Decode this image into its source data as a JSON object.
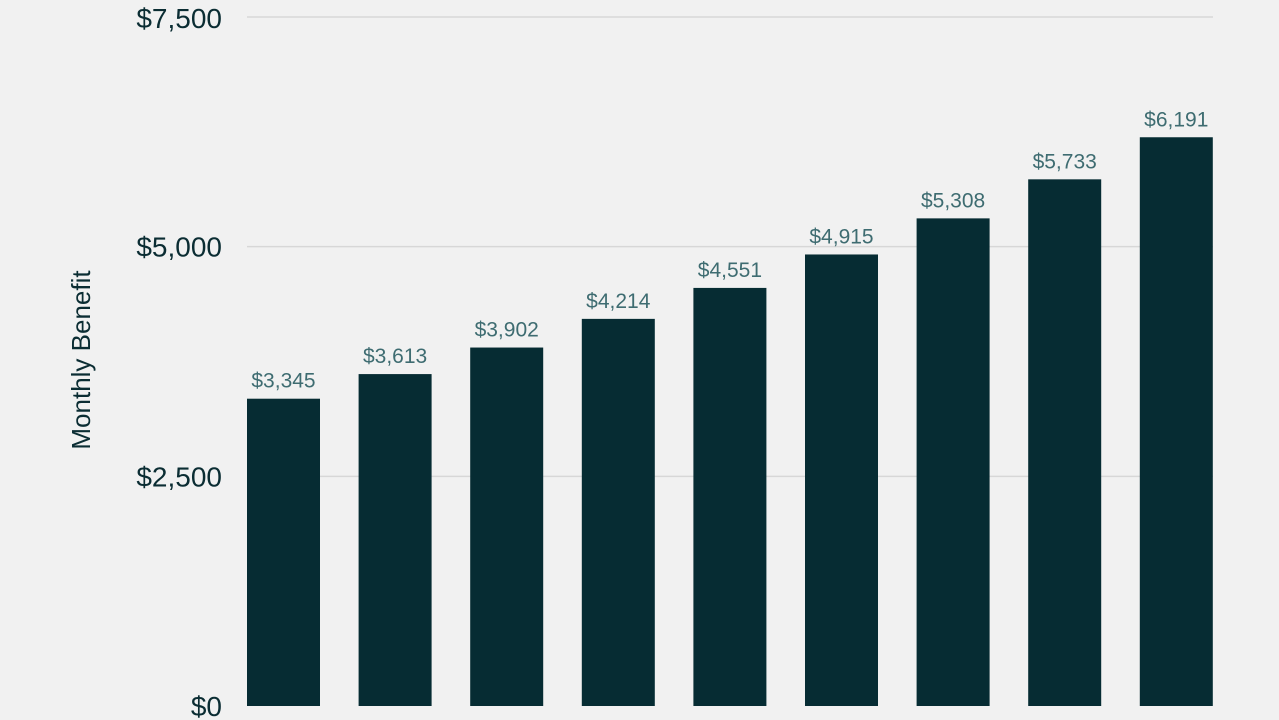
{
  "chart_data": {
    "type": "bar",
    "categories": [
      "",
      "",
      "",
      "",
      "",
      "",
      "",
      "",
      ""
    ],
    "values": [
      3345,
      3613,
      3902,
      4214,
      4551,
      4915,
      5308,
      5733,
      6191
    ],
    "data_labels": [
      "$3,345",
      "$3,613",
      "$3,902",
      "$4,214",
      "$4,551",
      "$4,915",
      "$5,308",
      "$5,733",
      "$6,191"
    ],
    "title": "",
    "xlabel": "",
    "ylabel": "Monthly Benefit",
    "ylim": [
      0,
      7500
    ],
    "yticks": [
      0,
      2500,
      5000,
      7500
    ],
    "ytick_labels": [
      "$0",
      "$2,500",
      "$5,000",
      "$7,500"
    ],
    "grid": true,
    "legend": "none",
    "colors": {
      "bar": "#062c33",
      "background": "#f1f1f1",
      "grid": "#d7d7d7",
      "tick_text": "#0b2d33",
      "data_label_text": "#3e6c71"
    }
  }
}
